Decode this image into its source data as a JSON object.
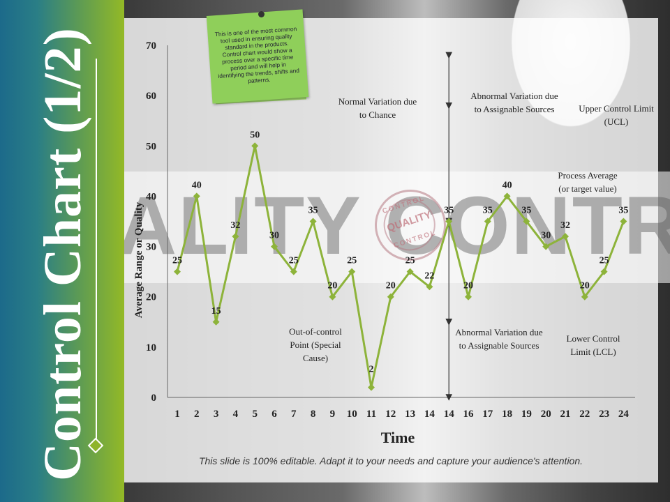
{
  "slide": {
    "title": "Control Chart (1/2)",
    "footer": "This slide is 100% editable. Adapt it to your needs and capture your audience's attention.",
    "accent_colors": {
      "band_start": "#1c6a8a",
      "band_end": "#93b926",
      "line": "#8db33a"
    }
  },
  "sticky_note": {
    "text": "This is one of the most common tool used in ensuring quality standard in the products. Control chart would show a process over a specific time period and will help in identifying the trends, shifts and patterns."
  },
  "watermark": {
    "text": "ALITY CONTROL",
    "stamp_top": "CONTROL",
    "stamp_main": "QUALITY",
    "stamp_bottom": "CONTROL"
  },
  "annotations": {
    "normal_variation": "Normal Variation due to Chance",
    "abnormal_top": "Abnormal Variation due to Assignable Sources",
    "ucl": "Upper Control Limit (UCL)",
    "process_average": "Process Average (or target value)",
    "out_of_control": "Out-of-control Point (Special Cause)",
    "abnormal_bottom": "Abnormal Variation due to Assignable Sources",
    "lcl": "Lower Control Limit (LCL)"
  },
  "chart_data": {
    "type": "line",
    "xlabel": "Time",
    "ylabel": "Average Range or Quality",
    "ylim": [
      0,
      70
    ],
    "yticks": [
      0,
      10,
      20,
      30,
      40,
      50,
      60,
      70
    ],
    "categories": [
      "1",
      "2",
      "3",
      "4",
      "5",
      "6",
      "7",
      "8",
      "9",
      "10",
      "11",
      "12",
      "13",
      "14",
      "14",
      "16",
      "17",
      "18",
      "19",
      "20",
      "21",
      "22",
      "23",
      "24"
    ],
    "values": [
      25,
      40,
      15,
      32,
      50,
      30,
      25,
      35,
      20,
      25,
      2,
      20,
      25,
      22,
      35,
      20,
      35,
      40,
      35,
      30,
      32,
      20,
      25,
      35
    ],
    "grid": false,
    "legend": "none"
  }
}
